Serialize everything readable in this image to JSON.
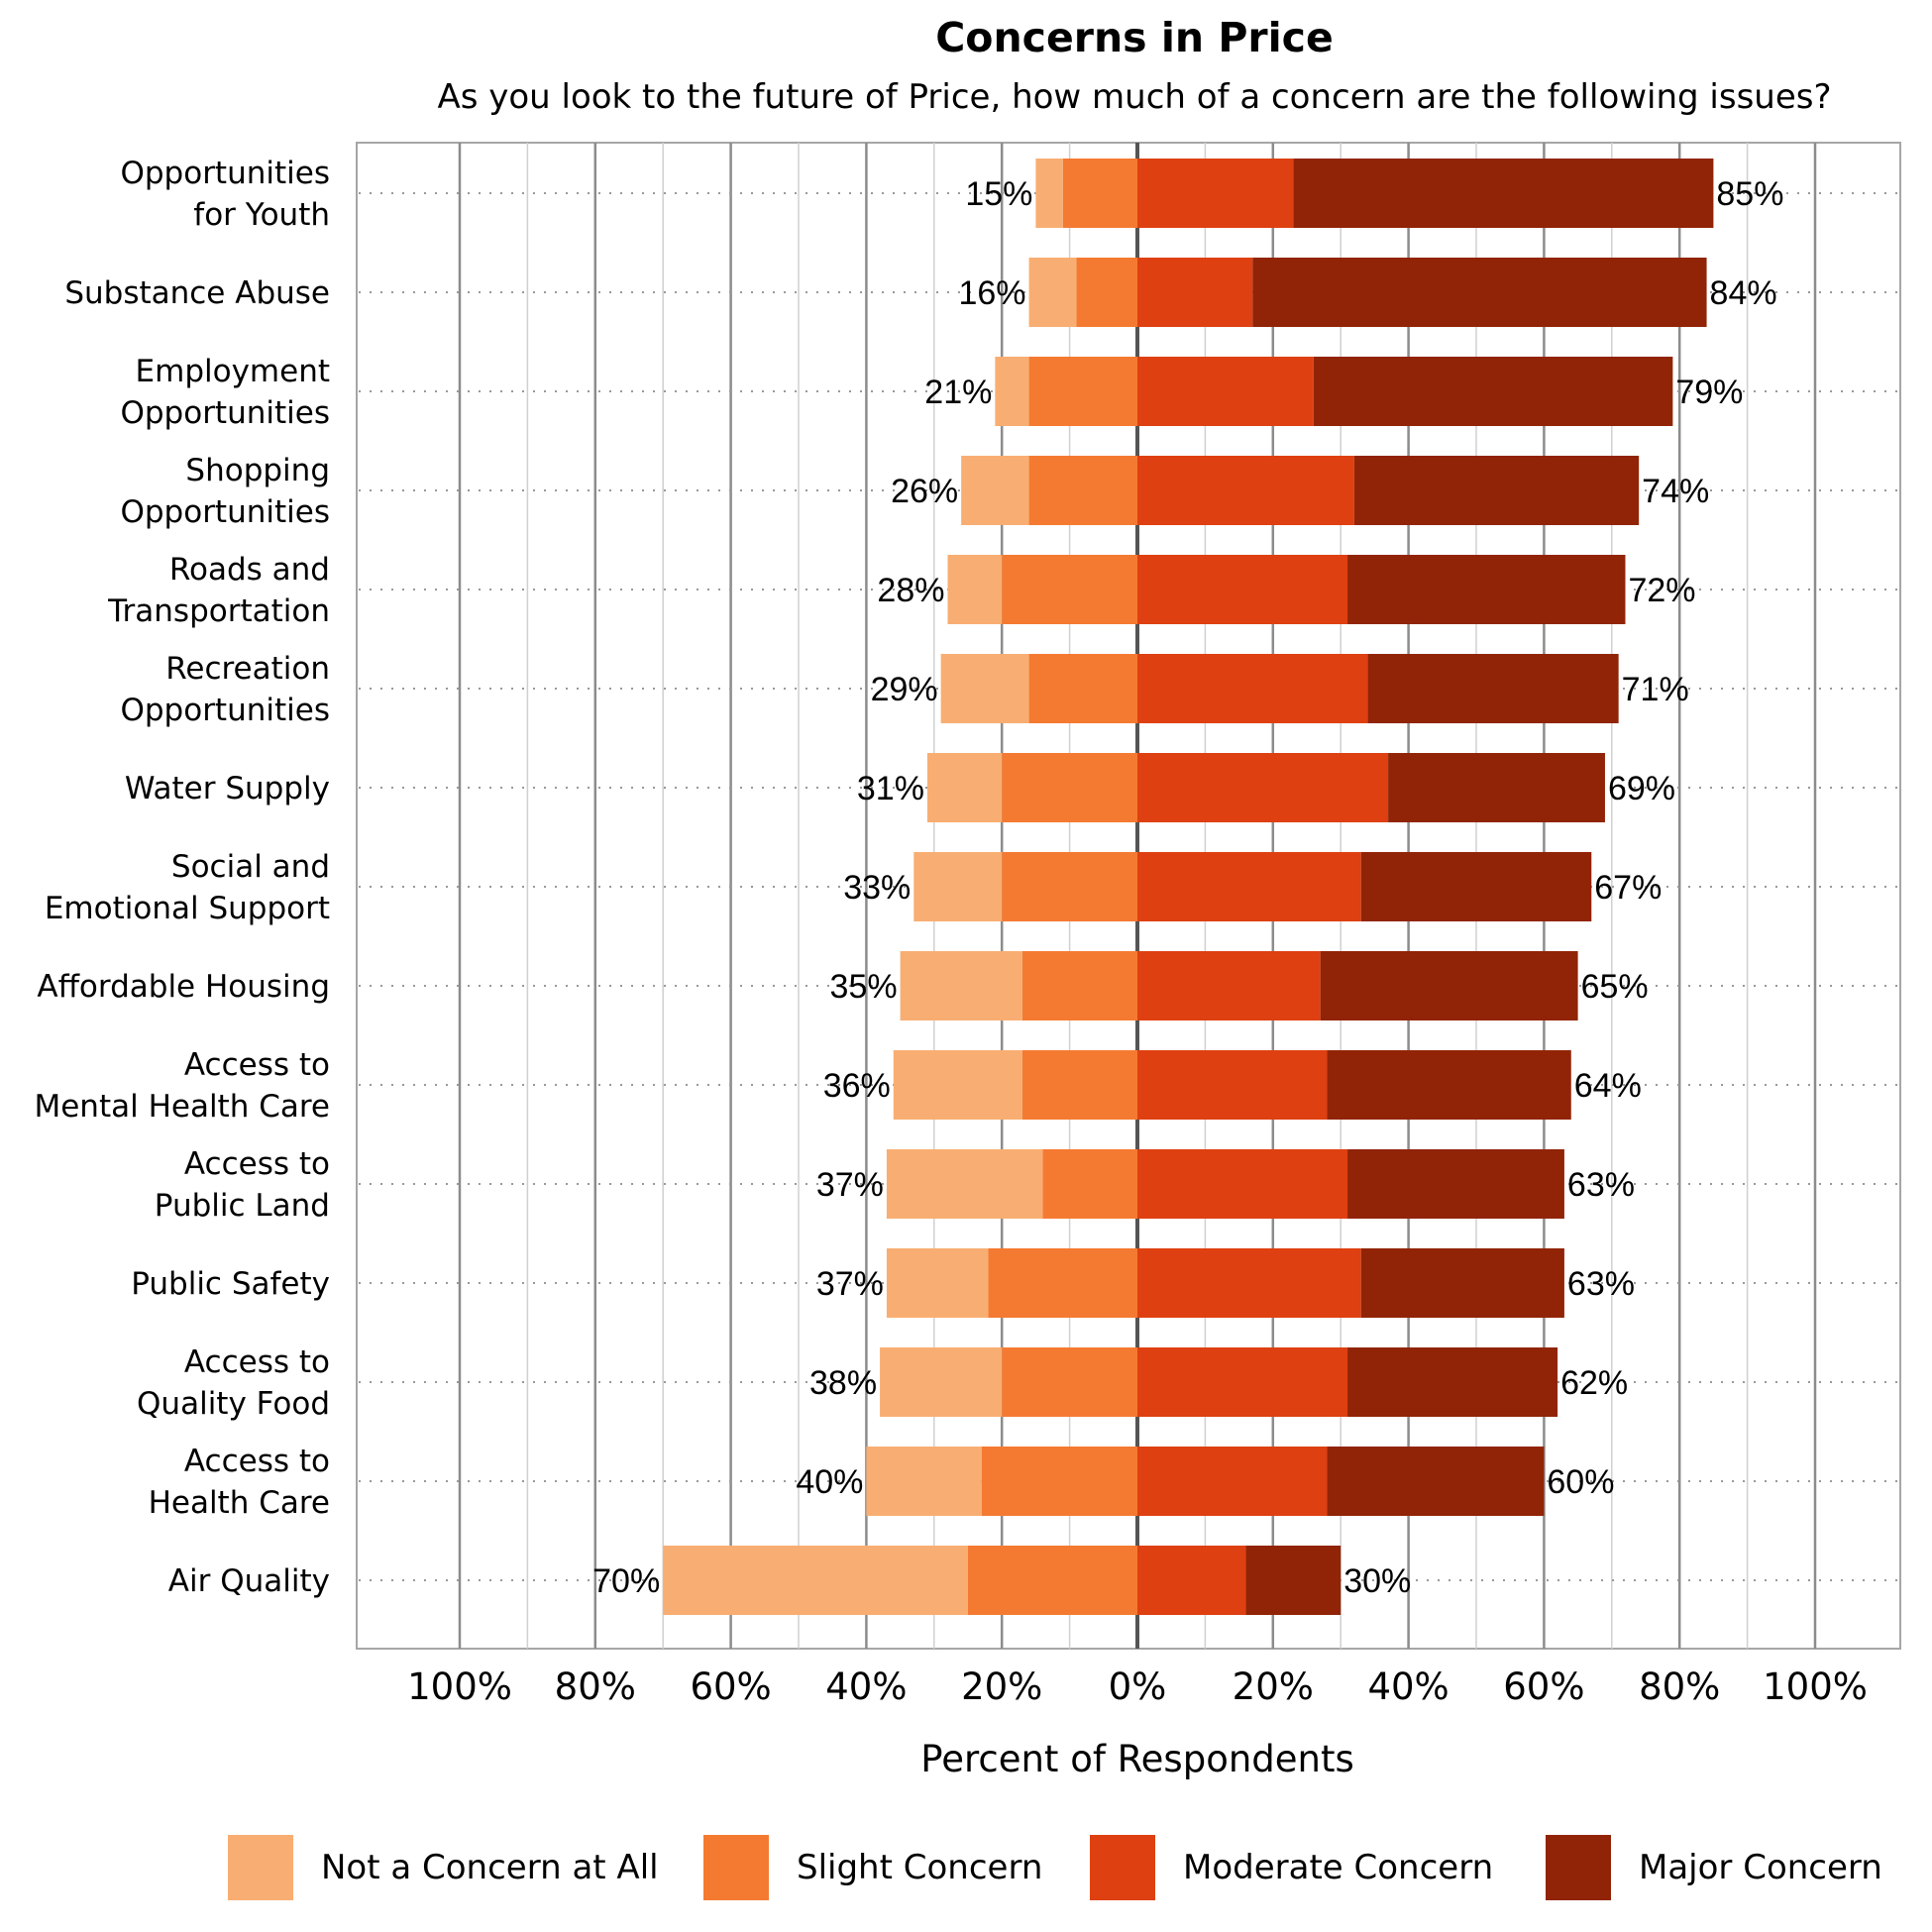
{
  "chart_data": {
    "type": "bar",
    "orientation": "horizontal-diverging",
    "title": "Concerns in Price",
    "subtitle": "As you look to the future of Price, how much of a concern are the following issues?",
    "xlabel": "Percent of Respondents",
    "xlim": [
      -100,
      100
    ],
    "x_ticks": [
      "100%",
      "80%",
      "60%",
      "40%",
      "20%",
      "0%",
      "20%",
      "40%",
      "60%",
      "80%",
      "100%"
    ],
    "grid": true,
    "legend_position": "bottom",
    "categories": [
      "Opportunities\nfor Youth",
      "Substance Abuse",
      "Employment\nOpportunities",
      "Shopping\nOpportunities",
      "Roads and\nTransportation",
      "Recreation\nOpportunities",
      "Water Supply",
      "Social and\nEmotional Support",
      "Affordable Housing",
      "Access to\nMental Health Care",
      "Access to\nPublic Land",
      "Public Safety",
      "Access to\nQuality Food",
      "Access to\nHealth Care",
      "Air Quality"
    ],
    "series": [
      {
        "name": "Not a Concern at All",
        "color": "#F8AE72",
        "side": "left",
        "values": [
          4,
          7,
          5,
          10,
          8,
          13,
          11,
          13,
          18,
          19,
          23,
          15,
          18,
          17,
          45
        ]
      },
      {
        "name": "Slight Concern",
        "color": "#F57A31",
        "side": "left",
        "values": [
          11,
          9,
          16,
          16,
          20,
          16,
          20,
          20,
          17,
          17,
          14,
          22,
          20,
          23,
          25
        ]
      },
      {
        "name": "Moderate Concern",
        "color": "#DE4011",
        "side": "right",
        "values": [
          23,
          17,
          26,
          32,
          31,
          34,
          37,
          33,
          27,
          28,
          31,
          33,
          31,
          28,
          16
        ]
      },
      {
        "name": "Major Concern",
        "color": "#912406",
        "side": "right",
        "values": [
          62,
          67,
          53,
          42,
          41,
          37,
          32,
          34,
          38,
          36,
          32,
          30,
          31,
          32,
          14
        ]
      }
    ],
    "left_totals": [
      "15%",
      "16%",
      "21%",
      "26%",
      "28%",
      "29%",
      "31%",
      "33%",
      "35%",
      "36%",
      "37%",
      "37%",
      "38%",
      "40%",
      "70%"
    ],
    "right_totals": [
      "85%",
      "84%",
      "79%",
      "74%",
      "72%",
      "71%",
      "69%",
      "67%",
      "65%",
      "64%",
      "63%",
      "63%",
      "62%",
      "60%",
      "30%"
    ]
  }
}
